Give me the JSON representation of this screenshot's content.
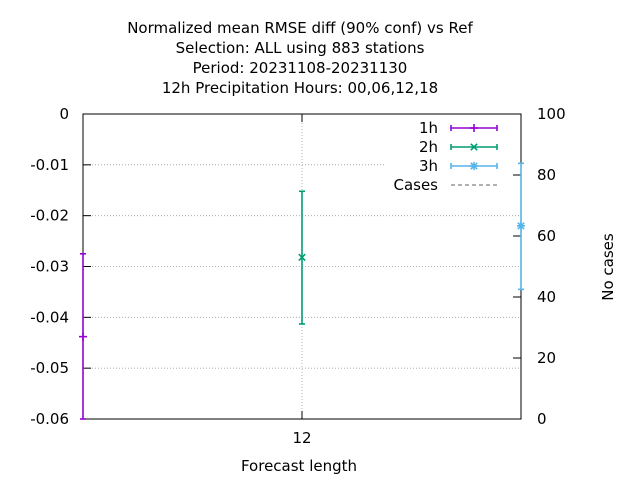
{
  "chart_data": {
    "type": "errorbar",
    "title_lines": [
      "Normalized mean RMSE diff (90% conf) vs Ref",
      "Selection: ALL using   883 stations",
      "Period: 20231108-20231130",
      "12h Precipitation   Hours:  00,06,12,18"
    ],
    "xlabel": "Forecast length",
    "ylabel": "",
    "y2label": "No cases",
    "xlim": [
      6,
      18
    ],
    "ylim": [
      -0.06,
      0
    ],
    "y2lim": [
      0,
      100
    ],
    "x_ticks": [
      12
    ],
    "y_ticks": [
      0,
      -0.01,
      -0.02,
      -0.03,
      -0.04,
      -0.05,
      -0.06
    ],
    "y_tick_labels": [
      "0",
      "-0.01",
      "-0.02",
      "-0.03",
      "-0.04",
      "-0.05",
      "-0.06"
    ],
    "y2_ticks": [
      0,
      20,
      40,
      60,
      80,
      100
    ],
    "grid": true,
    "legend_position": "top-right",
    "series": [
      {
        "name": "1h",
        "color": "#9400d3",
        "marker": "plus",
        "points": [
          {
            "x": 6,
            "y": -0.0438,
            "low": -0.06,
            "high": -0.0275
          }
        ]
      },
      {
        "name": "2h",
        "color": "#009e73",
        "marker": "cross",
        "points": [
          {
            "x": 12,
            "y": -0.0282,
            "low": -0.0413,
            "high": -0.0152
          }
        ]
      },
      {
        "name": "3h",
        "color": "#56b4e9",
        "marker": "star",
        "points": [
          {
            "x": 18,
            "y": -0.022,
            "low": -0.0345,
            "high": -0.0097
          }
        ]
      },
      {
        "name": "Cases",
        "color": "#808080",
        "marker": "none",
        "dashed": true,
        "points": []
      }
    ]
  }
}
